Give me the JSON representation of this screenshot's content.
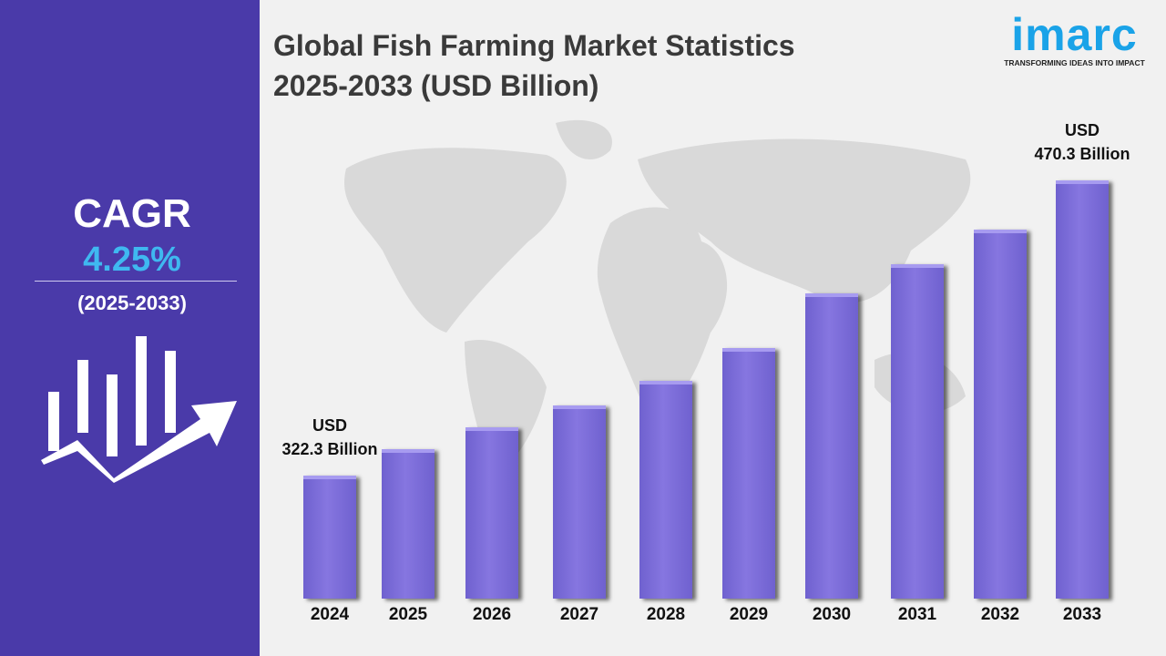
{
  "title_line1": "Global Fish Farming Market Statistics",
  "title_line2": "2025-2033 (USD Billion)",
  "logo": {
    "name": "imarc",
    "tagline": "TRANSFORMING IDEAS INTO IMPACT"
  },
  "cagr": {
    "label": "CAGR",
    "value": "4.25%",
    "period": "(2025-2033)",
    "value_color": "#3fb8f0"
  },
  "colors": {
    "panel": "#4a3aa9",
    "bar": "#7d6ddb"
  },
  "chart_data": {
    "type": "bar",
    "categories": [
      "2024",
      "2025",
      "2026",
      "2027",
      "2028",
      "2029",
      "2030",
      "2031",
      "2032",
      "2033"
    ],
    "values": [
      322.3,
      335.5,
      346.5,
      357.4,
      369.8,
      386.2,
      413.6,
      428.2,
      445.6,
      470.3
    ],
    "annotations": [
      {
        "category": "2024",
        "line1": "USD",
        "line2": "322.3 Billion"
      },
      {
        "category": "2033",
        "line1": "USD",
        "line2": "470.3 Billion"
      }
    ],
    "grid": false
  }
}
